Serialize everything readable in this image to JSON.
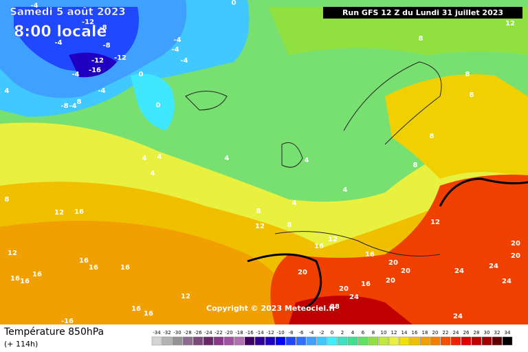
{
  "header": {
    "date": "Samedi 5 août 2023",
    "time": "8:00 locale",
    "run": "Run GFS 12 Z du Lundi 31 juillet 2023",
    "copyright": "Copyright © 2023 Meteociel.fr"
  },
  "footer": {
    "variable": "Température 850hPa",
    "lead": "(+ 114h)"
  },
  "contour_labels": [
    -4,
    -8,
    -12,
    -4,
    -8,
    -12,
    -12,
    -16,
    -4,
    -4,
    -8,
    -4,
    8,
    0,
    0,
    -4,
    -4,
    -4,
    0,
    4,
    12,
    8,
    8,
    8,
    8,
    8,
    4,
    4,
    4,
    4,
    4,
    4,
    4,
    8,
    12,
    16,
    8,
    12,
    8,
    12,
    12,
    16,
    16,
    16,
    16,
    16,
    12,
    16,
    16,
    16,
    12,
    20,
    20,
    20,
    20,
    20,
    16,
    24,
    28,
    24,
    24,
    24,
    24,
    20,
    20,
    16,
    16,
    -16
  ],
  "legend": [
    {
      "value": -34,
      "color": "#d4d4d4"
    },
    {
      "value": -32,
      "color": "#b4b4b4"
    },
    {
      "value": -30,
      "color": "#949494"
    },
    {
      "value": -28,
      "color": "#8c6c8c"
    },
    {
      "value": -26,
      "color": "#7a4a7a"
    },
    {
      "value": -24,
      "color": "#682868"
    },
    {
      "value": -22,
      "color": "#883888"
    },
    {
      "value": -20,
      "color": "#a050a0"
    },
    {
      "value": -18,
      "color": "#b070b0"
    },
    {
      "value": -16,
      "color": "#400060"
    },
    {
      "value": -14,
      "color": "#300090"
    },
    {
      "value": -12,
      "color": "#2000c0"
    },
    {
      "value": -10,
      "color": "#0000ff"
    },
    {
      "value": -8,
      "color": "#2048ff"
    },
    {
      "value": -6,
      "color": "#3070ff"
    },
    {
      "value": -4,
      "color": "#40a0ff"
    },
    {
      "value": -2,
      "color": "#40c8ff"
    },
    {
      "value": 0,
      "color": "#40f0ff"
    },
    {
      "value": 2,
      "color": "#40e0c0"
    },
    {
      "value": 4,
      "color": "#40e090"
    },
    {
      "value": 6,
      "color": "#60e060"
    },
    {
      "value": 8,
      "color": "#90e040"
    },
    {
      "value": 10,
      "color": "#c0e840"
    },
    {
      "value": 12,
      "color": "#e8f040"
    },
    {
      "value": 14,
      "color": "#f0e000"
    },
    {
      "value": 16,
      "color": "#f0c000"
    },
    {
      "value": 18,
      "color": "#f0a000"
    },
    {
      "value": 20,
      "color": "#f08000"
    },
    {
      "value": 22,
      "color": "#f05000"
    },
    {
      "value": 24,
      "color": "#f02000"
    },
    {
      "value": 26,
      "color": "#e00000"
    },
    {
      "value": 28,
      "color": "#c00000"
    },
    {
      "value": 30,
      "color": "#a00000"
    },
    {
      "value": 32,
      "color": "#600000"
    },
    {
      "value": 34,
      "color": "#000000"
    }
  ]
}
